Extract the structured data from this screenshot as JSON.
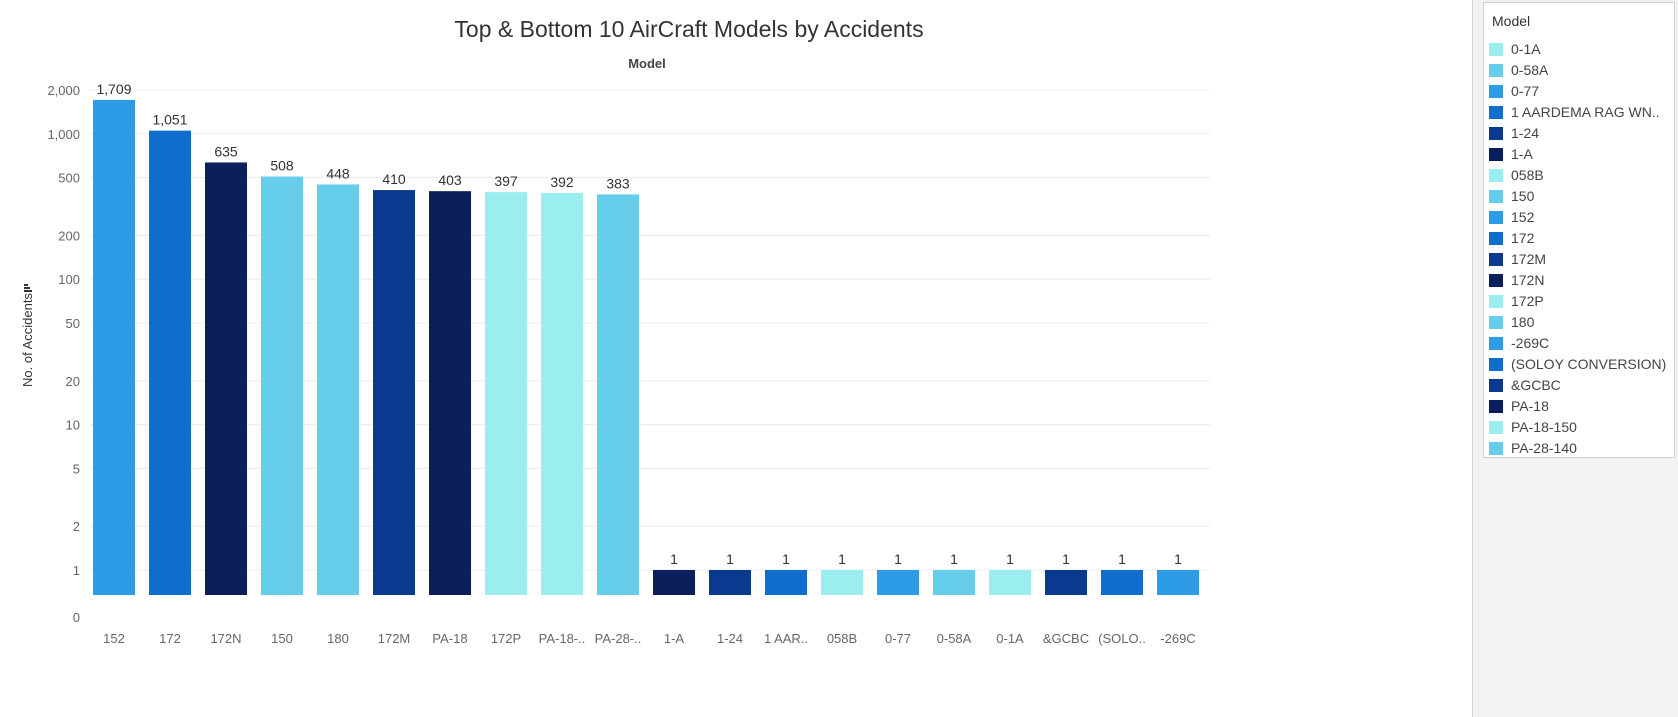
{
  "chart_data": {
    "type": "bar",
    "title": "Top & Bottom 10 AirCraft Models by Accidents",
    "xlabel": "Model",
    "ylabel": "No. of Accidents",
    "yscale": "log",
    "ylim": [
      0,
      2000
    ],
    "yticks": [
      {
        "value": 2000,
        "label": "2,000"
      },
      {
        "value": 1000,
        "label": "1,000"
      },
      {
        "value": 500,
        "label": "500"
      },
      {
        "value": 200,
        "label": "200"
      },
      {
        "value": 100,
        "label": "100"
      },
      {
        "value": 50,
        "label": "50"
      },
      {
        "value": 20,
        "label": "20"
      },
      {
        "value": 10,
        "label": "10"
      },
      {
        "value": 5,
        "label": "5"
      },
      {
        "value": 2,
        "label": "2"
      },
      {
        "value": 1,
        "label": "1"
      },
      {
        "value": 0,
        "label": "0"
      }
    ],
    "categories": [
      "152",
      "172",
      "172N",
      "150",
      "180",
      "172M",
      "PA-18",
      "172P",
      "PA-18-..",
      "PA-28-..",
      "1-A",
      "1-24",
      "1 AAR..",
      "058B",
      "0-77",
      "0-58A",
      "0-1A",
      "&GCBC",
      "(SOLO..",
      "-269C"
    ],
    "values": [
      1709,
      1051,
      635,
      508,
      448,
      410,
      403,
      397,
      392,
      383,
      1,
      1,
      1,
      1,
      1,
      1,
      1,
      1,
      1,
      1
    ],
    "value_labels": [
      "1,709",
      "1,051",
      "635",
      "508",
      "448",
      "410",
      "403",
      "397",
      "392",
      "383",
      "1",
      "1",
      "1",
      "1",
      "1",
      "1",
      "1",
      "1",
      "1",
      "1"
    ],
    "colors": [
      "#2e9be6",
      "#0f6dcc",
      "#0a1f5c",
      "#66cdeb",
      "#66cdeb",
      "#0a3a8f",
      "#0a1f5c",
      "#9aeef0",
      "#9aeef0",
      "#66cdeb",
      "#0a1f5c",
      "#0a3a8f",
      "#0f6dcc",
      "#9aeef0",
      "#2e9be6",
      "#66cdeb",
      "#9aeef0",
      "#0a3a8f",
      "#0f6dcc",
      "#2e9be6"
    ],
    "grid": true,
    "legend_position": "right"
  },
  "legend": {
    "title": "Model",
    "items": [
      {
        "label": "0-1A",
        "color": "#9aeef0"
      },
      {
        "label": "0-58A",
        "color": "#66cdeb"
      },
      {
        "label": "0-77",
        "color": "#2e9be6"
      },
      {
        "label": "1 AARDEMA RAG WN..",
        "color": "#0f6dcc"
      },
      {
        "label": "1-24",
        "color": "#0a3a8f"
      },
      {
        "label": "1-A",
        "color": "#0a1f5c"
      },
      {
        "label": "058B",
        "color": "#9aeef0"
      },
      {
        "label": "150",
        "color": "#66cdeb"
      },
      {
        "label": "152",
        "color": "#2e9be6"
      },
      {
        "label": "172",
        "color": "#0f6dcc"
      },
      {
        "label": "172M",
        "color": "#0a3a8f"
      },
      {
        "label": "172N",
        "color": "#0a1f5c"
      },
      {
        "label": "172P",
        "color": "#9aeef0"
      },
      {
        "label": "180",
        "color": "#66cdeb"
      },
      {
        "label": "-269C",
        "color": "#2e9be6"
      },
      {
        "label": "(SOLOY CONVERSION)",
        "color": "#0f6dcc"
      },
      {
        "label": "&GCBC",
        "color": "#0a3a8f"
      },
      {
        "label": "PA-18",
        "color": "#0a1f5c"
      },
      {
        "label": "PA-18-150",
        "color": "#9aeef0"
      },
      {
        "label": "PA-28-140",
        "color": "#66cdeb"
      }
    ]
  }
}
